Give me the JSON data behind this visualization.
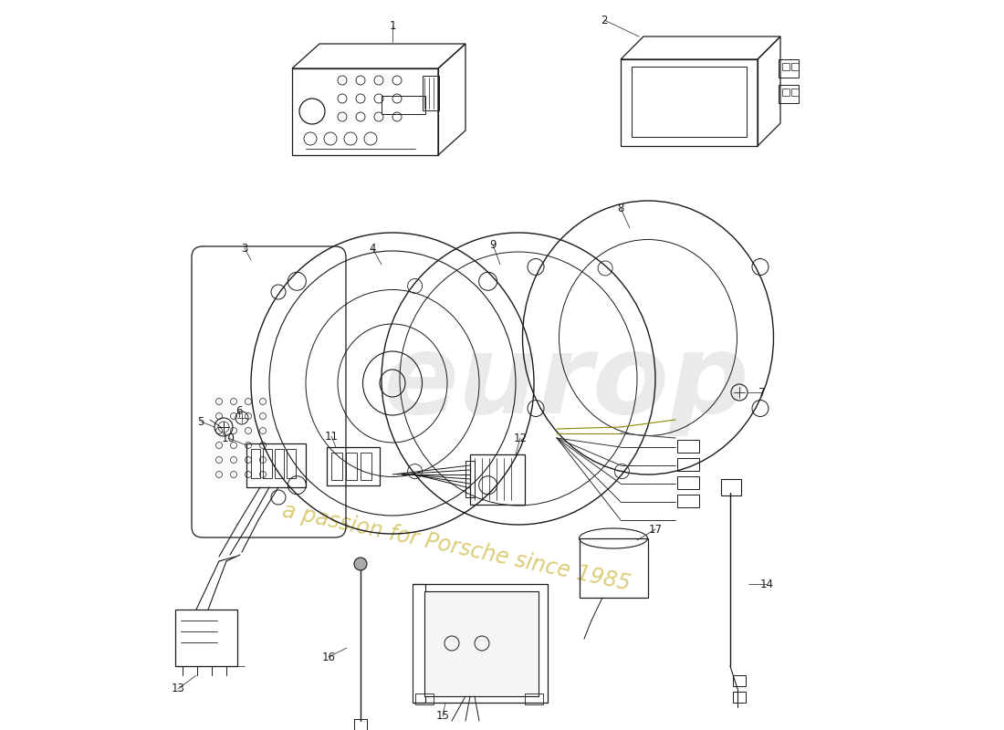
{
  "background_color": "#ffffff",
  "line_color": "#1a1a1a",
  "fig_width": 11.0,
  "fig_height": 8.0,
  "dpi": 100
}
